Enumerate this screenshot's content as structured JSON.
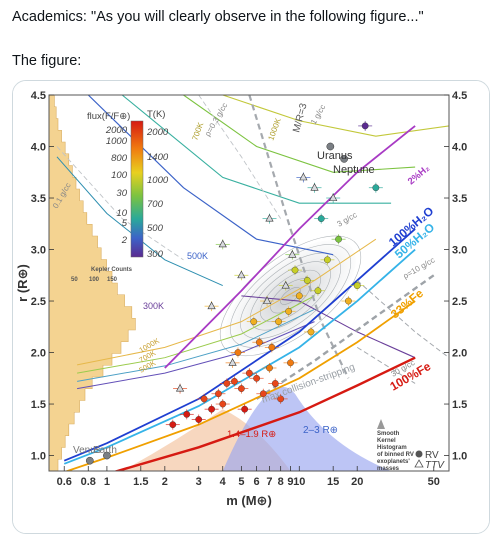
{
  "post": {
    "line1": "Academics: \"As you will clearly observe in the following figure...\"",
    "line2": "The figure:"
  },
  "colors": {
    "water100": "#1f3fd1",
    "water50": "#35b3e8",
    "iron33": "#f0a000",
    "iron100": "#d61a12",
    "hydrogen": "#a83ac4",
    "collision": "#9ea3a8",
    "histogram": "#f3cf86"
  },
  "chart_data": {
    "type": "scatter",
    "title": "",
    "xlabel": "m (M⊕)",
    "ylabel": "r (R⊕)",
    "xscale": "log",
    "xlim": [
      0.5,
      60
    ],
    "ylim": [
      0.85,
      4.5
    ],
    "x_ticks": [
      "0.6",
      "0.8",
      "1",
      "1.5",
      "2",
      "3",
      "4",
      "5",
      "6",
      "7",
      "8",
      "9",
      "10",
      "15",
      "20",
      "50"
    ],
    "x_tick_values": [
      0.6,
      0.8,
      1,
      1.5,
      2,
      3,
      4,
      5,
      6,
      7,
      8,
      9,
      10,
      15,
      20,
      50
    ],
    "y_ticks": [
      "1.0",
      "1.5",
      "2.0",
      "2.5",
      "3.0",
      "3.5",
      "4.0",
      "4.5"
    ],
    "y_tick_values": [
      1.0,
      1.5,
      2.0,
      2.5,
      3.0,
      3.5,
      4.0,
      4.5
    ],
    "colorbar": {
      "left_title": "flux(F/F⊕)",
      "right_title": "T(K)",
      "left_labels": [
        "2000",
        "1000",
        "800",
        "100",
        "30",
        "10",
        "5",
        "2"
      ],
      "right_labels": [
        "2000",
        "1400",
        "1000",
        "700",
        "500",
        "300"
      ]
    },
    "histogram_labels": {
      "title": "Kepler Counts",
      "ticks": [
        "50",
        "100",
        "150"
      ]
    },
    "composition_curves": [
      {
        "name": "100%H₂O",
        "color": "#1f3fd1",
        "points": [
          [
            0.6,
            0.95
          ],
          [
            1,
            1.12
          ],
          [
            3,
            1.55
          ],
          [
            10,
            2.2
          ],
          [
            20,
            2.7
          ],
          [
            40,
            3.2
          ]
        ]
      },
      {
        "name": "50%H₂O",
        "color": "#35b3e8",
        "points": [
          [
            0.6,
            0.92
          ],
          [
            1,
            1.08
          ],
          [
            3,
            1.48
          ],
          [
            10,
            2.05
          ],
          [
            20,
            2.5
          ],
          [
            40,
            3.0
          ]
        ]
      },
      {
        "name": "33%Fe",
        "color": "#f0a000",
        "points": [
          [
            0.6,
            0.84
          ],
          [
            1,
            0.98
          ],
          [
            3,
            1.3
          ],
          [
            10,
            1.75
          ],
          [
            20,
            2.1
          ],
          [
            40,
            2.5
          ]
        ]
      },
      {
        "name": "100%Fe",
        "color": "#d61a12",
        "points": [
          [
            0.6,
            0.7
          ],
          [
            1,
            0.82
          ],
          [
            3,
            1.08
          ],
          [
            10,
            1.42
          ],
          [
            20,
            1.68
          ],
          [
            40,
            1.95
          ]
        ]
      },
      {
        "name": "2%H₂",
        "color": "#a83ac4",
        "points": [
          [
            2,
            1.85
          ],
          [
            5,
            2.6
          ],
          [
            10,
            3.2
          ],
          [
            20,
            3.75
          ],
          [
            40,
            4.2
          ]
        ]
      }
    ],
    "annotation_labels": [
      "0.1 g/cc",
      "ρ=0.3 g/cc",
      "700K",
      "1000K",
      "M/R=3",
      "1 g/cc",
      "Uranus",
      "Neptune",
      "3 g/cc",
      "ρ=10 g/cc",
      "30 g/cc",
      "500K",
      "300K",
      "1000K",
      "700K",
      "500K",
      "max collision-stripping",
      "Venus",
      "Earth",
      "1.4–1.9 R⊕",
      "2–3 R⊕"
    ],
    "legend": {
      "kde_label": [
        "Smooth",
        "Kernel",
        "Histogram",
        "of binned RV",
        "exoplanets'",
        "masses"
      ],
      "rv_label": "RV",
      "ttv_label": "TTV"
    },
    "planets": [
      {
        "name": "Uranus",
        "mass": 14.5,
        "radius": 4.0
      },
      {
        "name": "Neptune",
        "mass": 17.1,
        "radius": 3.88
      },
      {
        "name": "Venus",
        "mass": 0.815,
        "radius": 0.95
      },
      {
        "name": "Earth",
        "mass": 1.0,
        "radius": 1.0
      }
    ],
    "exoplanets": [
      {
        "m": 3.2,
        "r": 1.55,
        "t": "rv"
      },
      {
        "m": 3.8,
        "r": 1.6,
        "t": "rv"
      },
      {
        "m": 4.2,
        "r": 1.7,
        "t": "rv"
      },
      {
        "m": 4.6,
        "r": 1.72,
        "t": "rv"
      },
      {
        "m": 5.0,
        "r": 1.65,
        "t": "rv"
      },
      {
        "m": 5.5,
        "r": 1.8,
        "t": "rv"
      },
      {
        "m": 6.0,
        "r": 1.75,
        "t": "rv"
      },
      {
        "m": 6.5,
        "r": 1.6,
        "t": "rv"
      },
      {
        "m": 7.0,
        "r": 1.85,
        "t": "rv"
      },
      {
        "m": 7.5,
        "r": 1.7,
        "t": "rv"
      },
      {
        "m": 8.0,
        "r": 1.55,
        "t": "rv"
      },
      {
        "m": 4.0,
        "r": 1.5,
        "t": "rv"
      },
      {
        "m": 3.5,
        "r": 1.45,
        "t": "rv"
      },
      {
        "m": 5.2,
        "r": 1.45,
        "t": "rv"
      },
      {
        "m": 9.0,
        "r": 1.9,
        "t": "rv"
      },
      {
        "m": 6.2,
        "r": 2.1,
        "t": "rv"
      },
      {
        "m": 7.8,
        "r": 2.3,
        "t": "rv"
      },
      {
        "m": 8.8,
        "r": 2.4,
        "t": "rv"
      },
      {
        "m": 10.0,
        "r": 2.55,
        "t": "rv"
      },
      {
        "m": 11.0,
        "r": 2.7,
        "t": "rv"
      },
      {
        "m": 12.5,
        "r": 2.6,
        "t": "rv"
      },
      {
        "m": 9.5,
        "r": 2.8,
        "t": "rv"
      },
      {
        "m": 14.0,
        "r": 2.9,
        "t": "rv"
      },
      {
        "m": 16.0,
        "r": 3.1,
        "t": "rv"
      },
      {
        "m": 18.0,
        "r": 2.5,
        "t": "rv"
      },
      {
        "m": 20.0,
        "r": 2.65,
        "t": "rv"
      },
      {
        "m": 13.0,
        "r": 3.3,
        "t": "rv"
      },
      {
        "m": 22.0,
        "r": 4.2,
        "t": "rv"
      },
      {
        "m": 25.0,
        "r": 3.6,
        "t": "rv"
      },
      {
        "m": 5.8,
        "r": 2.3,
        "t": "rv"
      },
      {
        "m": 7.2,
        "r": 2.05,
        "t": "rv"
      },
      {
        "m": 4.8,
        "r": 2.0,
        "t": "rv"
      },
      {
        "m": 2.6,
        "r": 1.4,
        "t": "rv"
      },
      {
        "m": 3.0,
        "r": 1.35,
        "t": "rv"
      },
      {
        "m": 2.2,
        "r": 1.3,
        "t": "rv"
      },
      {
        "m": 11.5,
        "r": 2.2,
        "t": "rv"
      },
      {
        "m": 4.5,
        "r": 1.9,
        "t": "ttv"
      },
      {
        "m": 6.8,
        "r": 2.5,
        "t": "ttv"
      },
      {
        "m": 8.5,
        "r": 2.65,
        "t": "ttv"
      },
      {
        "m": 10.5,
        "r": 3.7,
        "t": "ttv"
      },
      {
        "m": 12.0,
        "r": 3.6,
        "t": "ttv"
      },
      {
        "m": 9.2,
        "r": 2.95,
        "t": "ttv"
      },
      {
        "m": 3.5,
        "r": 2.45,
        "t": "ttv"
      },
      {
        "m": 5.0,
        "r": 2.75,
        "t": "ttv"
      },
      {
        "m": 2.4,
        "r": 1.65,
        "t": "ttv"
      },
      {
        "m": 4.0,
        "r": 3.05,
        "t": "ttv"
      },
      {
        "m": 15.0,
        "r": 3.5,
        "t": "ttv"
      },
      {
        "m": 7.0,
        "r": 3.3,
        "t": "ttv"
      }
    ]
  }
}
